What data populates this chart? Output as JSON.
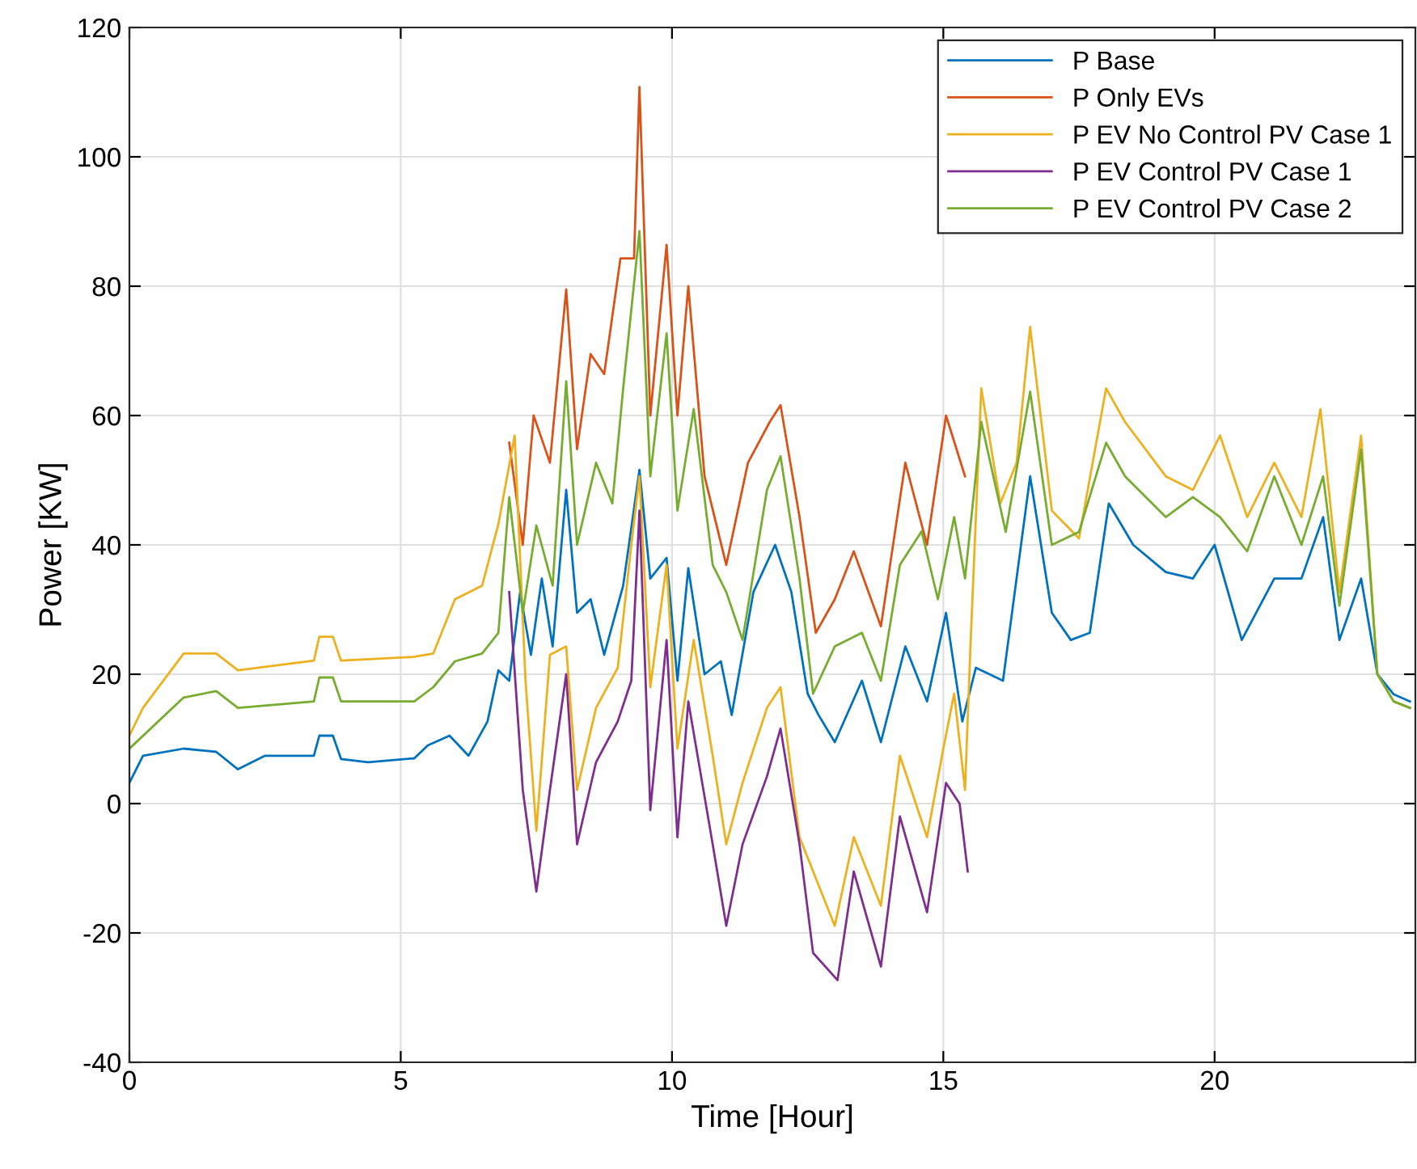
{
  "chart_data": {
    "type": "line",
    "xlabel": "Time [Hour]",
    "ylabel": "Power [KW]",
    "xlim": [
      0,
      23.7
    ],
    "ylim": [
      -40,
      120
    ],
    "xticks": [
      0,
      5,
      10,
      15,
      20
    ],
    "yticks": [
      -40,
      -20,
      0,
      20,
      40,
      60,
      80,
      100,
      120
    ],
    "grid": true,
    "legend": "top right",
    "line_style": "solid",
    "marker": "none",
    "series": [
      {
        "name": "P Base",
        "color": "#0072bd",
        "x": [
          0,
          0.25,
          1,
          1.6,
          2,
          2.5,
          3.4,
          3.5,
          3.75,
          3.9,
          4.4,
          5.25,
          5.5,
          5.9,
          6.25,
          6.6,
          6.8,
          7,
          7.2,
          7.4,
          7.6,
          7.8,
          8.05,
          8.25,
          8.5,
          8.75,
          9.1,
          9.4,
          9.6,
          9.9,
          10.1,
          10.3,
          10.6,
          10.9,
          11.1,
          11.5,
          11.9,
          12.2,
          12.5,
          12.7,
          13,
          13.5,
          13.85,
          14.3,
          14.7,
          15.05,
          15.35,
          15.6,
          16.1,
          16.6,
          17,
          17.35,
          17.7,
          18.05,
          18.5,
          19.1,
          19.6,
          20,
          20.5,
          21.1,
          21.6,
          22,
          22.3,
          22.7,
          23,
          23.3,
          23.6
        ],
        "values": [
          3.2,
          7.4,
          8.5,
          8,
          5.3,
          7.4,
          7.4,
          10.5,
          10.5,
          6.9,
          6.4,
          7,
          9,
          10.5,
          7.4,
          12.7,
          20.6,
          19,
          32.7,
          23,
          34.8,
          24.3,
          48.5,
          29.5,
          31.6,
          23,
          33.7,
          51.6,
          34.8,
          38,
          19,
          36.4,
          20,
          22,
          13.7,
          32.7,
          40,
          32.7,
          17,
          13.7,
          9.5,
          19,
          9.5,
          24.3,
          15.8,
          29.5,
          12.7,
          21,
          19,
          50.6,
          29.5,
          25.3,
          26.4,
          46.4,
          40,
          35.8,
          34.8,
          40,
          25.3,
          34.8,
          34.8,
          44.3,
          25.3,
          34.8,
          20,
          16.9,
          15.8
        ]
      },
      {
        "name": "P Only EVs",
        "color": "#d95319",
        "x": [
          7,
          7.25,
          7.45,
          7.75,
          8.05,
          8.25,
          8.5,
          8.75,
          9.05,
          9.3,
          9.4,
          9.6,
          9.9,
          10.1,
          10.3,
          10.6,
          11,
          11.4,
          11.8,
          12,
          12.35,
          12.65,
          13,
          13.35,
          13.85,
          14.3,
          14.7,
          15.05,
          15.4
        ],
        "values": [
          55.8,
          40,
          60,
          52.7,
          79.5,
          54.8,
          69.5,
          66.4,
          84.3,
          84.3,
          110.8,
          60,
          86.4,
          60,
          80,
          50.6,
          36.9,
          52.7,
          59,
          61.6,
          44.3,
          26.4,
          31.6,
          39,
          27.4,
          52.7,
          40,
          60,
          50.6
        ]
      },
      {
        "name": "P EV No Control PV Case 1",
        "color": "#edb120",
        "x": [
          0,
          0.25,
          1,
          1.6,
          2,
          3.4,
          3.5,
          3.75,
          3.9,
          5.25,
          5.6,
          6,
          6.5,
          6.8,
          7.1,
          7.3,
          7.5,
          7.75,
          8.05,
          8.25,
          8.6,
          9,
          9.25,
          9.4,
          9.6,
          9.9,
          10.1,
          10.4,
          10.75,
          11,
          11.3,
          11.75,
          12,
          12.35,
          12.7,
          13,
          13.35,
          13.85,
          14.2,
          14.7,
          15,
          15.2,
          15.4,
          15.5,
          15.7,
          16.05,
          16.35,
          16.6,
          17,
          17.5,
          18,
          18.35,
          19.1,
          19.6,
          20.1,
          20.6,
          21.1,
          21.6,
          21.95,
          22.3,
          22.7,
          23,
          23.3,
          23.6
        ],
        "values": [
          10.5,
          14.8,
          23.2,
          23.2,
          20.6,
          22.1,
          25.8,
          25.8,
          22.1,
          22.7,
          23.2,
          31.6,
          33.7,
          43.2,
          56.9,
          19,
          -4.2,
          23,
          24.3,
          2.1,
          14.8,
          21,
          40,
          50.6,
          18,
          36.9,
          8.5,
          25.3,
          7.4,
          -6.3,
          3.2,
          14.8,
          18,
          -5.2,
          -12.6,
          -18.9,
          -5.2,
          -15.8,
          7.4,
          -5.2,
          8.5,
          17,
          2.1,
          24.3,
          64.2,
          46.4,
          52.7,
          73.7,
          45.3,
          41,
          64.2,
          59,
          50.6,
          48.5,
          56.9,
          44.3,
          52.7,
          44.3,
          61,
          32.7,
          56.9,
          20,
          15.8,
          14.8
        ]
      },
      {
        "name": "P EV Control PV Case 1",
        "color": "#7e2f8e",
        "x": [
          7,
          7.25,
          7.5,
          7.75,
          8.05,
          8.25,
          8.6,
          9,
          9.25,
          9.4,
          9.6,
          9.9,
          10.1,
          10.3,
          10.75,
          11,
          11.3,
          11.75,
          12,
          12.35,
          12.6,
          13.05,
          13.35,
          13.85,
          14.2,
          14.7,
          15.05,
          15.3,
          15.45
        ],
        "values": [
          32.7,
          2.1,
          -13.6,
          2.1,
          20,
          -6.3,
          6.4,
          12.7,
          19,
          45.3,
          -1,
          25.3,
          -5.2,
          15.8,
          -6.3,
          -18.9,
          -6.3,
          4.2,
          11.6,
          -6.3,
          -23.1,
          -27.3,
          -10.5,
          -25.2,
          -2,
          -16.8,
          3.2,
          0,
          -10.5
        ]
      },
      {
        "name": "P EV Control PV Case 2",
        "color": "#77ac30",
        "x": [
          0,
          1,
          1.6,
          2,
          3.4,
          3.5,
          3.75,
          3.9,
          5.25,
          5.6,
          6,
          6.5,
          6.8,
          7,
          7.25,
          7.5,
          7.8,
          8.05,
          8.25,
          8.6,
          8.9,
          9.1,
          9.4,
          9.6,
          9.9,
          10.1,
          10.4,
          10.75,
          11,
          11.3,
          11.75,
          12,
          12.35,
          12.6,
          13,
          13.5,
          13.85,
          14.2,
          14.6,
          14.9,
          15.2,
          15.4,
          15.7,
          16.15,
          16.6,
          17,
          17.5,
          18,
          18.35,
          19.1,
          19.6,
          20.1,
          20.6,
          21.1,
          21.6,
          22,
          22.3,
          22.7,
          23,
          23.3,
          23.6
        ],
        "values": [
          8.5,
          16.4,
          17.4,
          14.8,
          15.8,
          19.5,
          19.5,
          15.8,
          15.8,
          18,
          22,
          23.2,
          26.4,
          47.4,
          29.5,
          43,
          33.7,
          65.3,
          40,
          52.7,
          46.4,
          64.2,
          88.5,
          50.6,
          72.7,
          45.3,
          61,
          36.9,
          32.7,
          25.3,
          48.5,
          53.7,
          34.8,
          17,
          24.3,
          26.4,
          19,
          36.9,
          42.1,
          31.6,
          44.3,
          34.8,
          59,
          42,
          63.7,
          40,
          42,
          55.8,
          50.6,
          44.3,
          47.4,
          44.3,
          39,
          50.6,
          40,
          50.6,
          30.6,
          54.8,
          20,
          15.8,
          14.8
        ]
      }
    ]
  }
}
